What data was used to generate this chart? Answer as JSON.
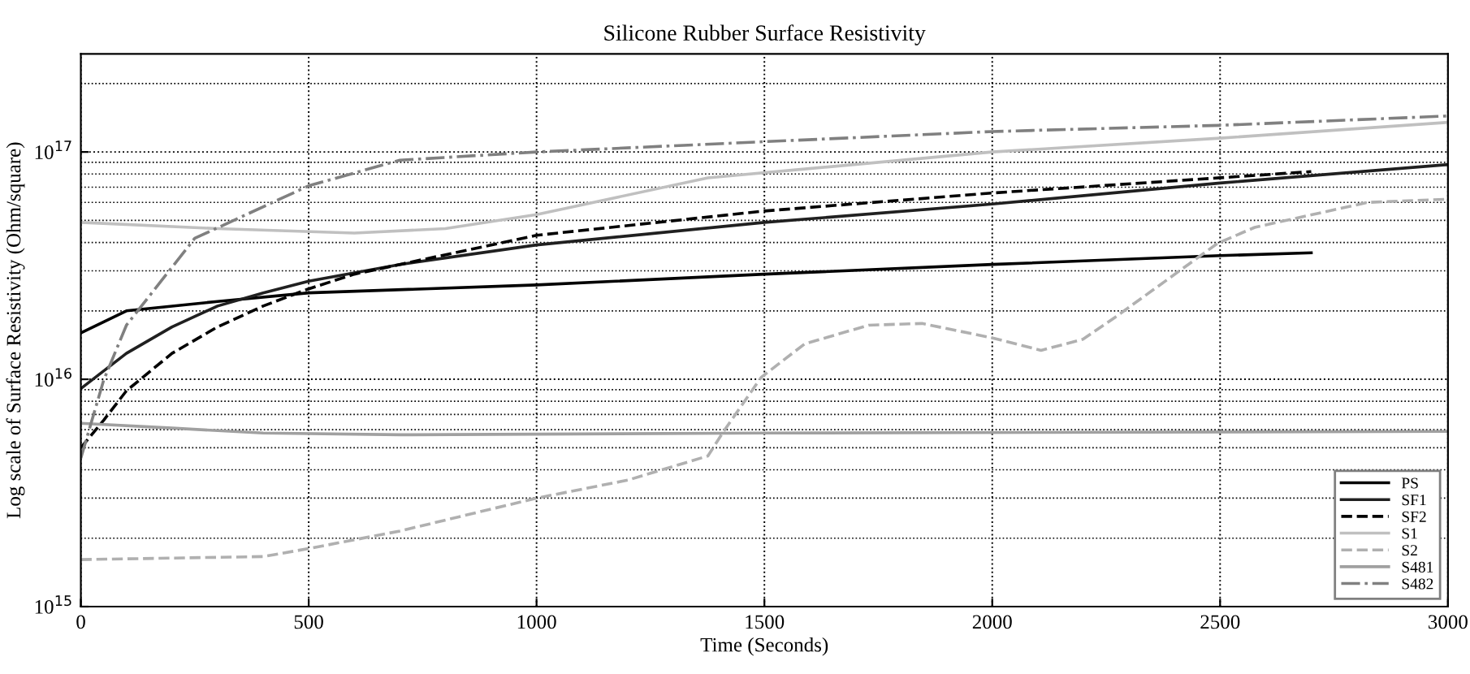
{
  "chart_data": {
    "type": "line",
    "title": "Silicone Rubber Surface Resistivity",
    "xlabel": "Time (Seconds)",
    "ylabel": "Log scale of Surface Resistivity (Ohm/square)",
    "log": "y",
    "grid": true,
    "legend": "lower right",
    "xlim": [
      0,
      3000
    ],
    "xticks": [
      0,
      500,
      1000,
      1500,
      2000,
      2500,
      3000
    ],
    "ylim": [
      1000000000000000.0,
      2.7e+17
    ],
    "yticks": [
      {
        "value": 1000000000000000.0,
        "label": "10$^{15}$"
      },
      {
        "value": 1e+16,
        "label": "10$^{16}$"
      },
      {
        "value": 1e+17,
        "label": "10$^{17}$"
      }
    ],
    "series": [
      {
        "name": "PS",
        "color": "#000000",
        "line_style": "solid",
        "x": [
          0,
          100,
          300,
          500,
          1000,
          1500,
          2000,
          2500,
          2700
        ],
        "values": [
          1.6e+16,
          2e+16,
          2.2e+16,
          2.4e+16,
          2.6e+16,
          2.9e+16,
          3.2e+16,
          3.5e+16,
          3.6e+16
        ]
      },
      {
        "name": "SF1",
        "color": "#202020",
        "line_style": "solid",
        "x": [
          0,
          100,
          200,
          300,
          400,
          500,
          700,
          1000,
          1500,
          2000,
          2500,
          3000
        ],
        "values": [
          9100000000000000.0,
          1.3e+16,
          1.7e+16,
          2.1e+16,
          2.4e+16,
          2.7e+16,
          3.2e+16,
          3.9e+16,
          4.9e+16,
          5.9e+16,
          7.3e+16,
          8.8e+16
        ]
      },
      {
        "name": "SF2",
        "color": "#000000",
        "line_style": "dashed",
        "x": [
          0,
          50,
          100,
          200,
          300,
          400,
          500,
          600,
          700,
          1000,
          1500,
          2000,
          2500,
          2700
        ],
        "values": [
          5000000000000000.0,
          6600000000000000.0,
          8900000000000000.0,
          1.3e+16,
          1.7e+16,
          2.1e+16,
          2.5e+16,
          2.9e+16,
          3.2e+16,
          4.3e+16,
          5.5e+16,
          6.6e+16,
          7.7e+16,
          8.2e+16
        ]
      },
      {
        "name": "S1",
        "color": "#c0c0c0",
        "line_style": "solid",
        "x": [
          0,
          300,
          600,
          800,
          1000,
          1376,
          2000,
          2500,
          3000
        ],
        "values": [
          4.9e+16,
          4.6e+16,
          4.4e+16,
          4.6e+16,
          5.3e+16,
          7.7e+16,
          1e+17,
          1.15e+17,
          1.35e+17
        ]
      },
      {
        "name": "S2",
        "color": "#b0b0b0",
        "line_style": "dashed",
        "x": [
          0,
          400,
          500,
          700,
          1000,
          1200,
          1376,
          1412,
          1493,
          1588,
          1729,
          1846,
          2001,
          2107,
          2199,
          2269,
          2495,
          2576,
          2824,
          3000
        ],
        "values": [
          1610000000000000.0,
          1660000000000000.0,
          1800000000000000.0,
          2150000000000000.0,
          3000000000000000.0,
          3600000000000000.0,
          4600000000000000.0,
          5960000000000000.0,
          1.02e+16,
          1.43e+16,
          1.73e+16,
          1.76e+16,
          1.52e+16,
          1.34e+16,
          1.5e+16,
          1.87e+16,
          3.97e+16,
          4.66e+16,
          6e+16,
          6.2e+16
        ]
      },
      {
        "name": "S481",
        "color": "#a0a0a0",
        "line_style": "solid",
        "x": [
          0,
          200,
          400,
          700,
          1500,
          3000
        ],
        "values": [
          6400000000000000.0,
          6100000000000000.0,
          5800000000000000.0,
          5700000000000000.0,
          5800000000000000.0,
          5900000000000000.0
        ]
      },
      {
        "name": "S482",
        "color": "#808080",
        "line_style": "dashdot",
        "x": [
          0,
          50,
          100,
          250,
          500,
          700,
          1000,
          1500,
          2000,
          2500,
          3000
        ],
        "values": [
          4500000000000000.0,
          9900000000000000.0,
          1.73e+16,
          4.17e+16,
          7.1e+16,
          9.2e+16,
          1e+17,
          1.11e+17,
          1.23e+17,
          1.31e+17,
          1.44e+17
        ]
      }
    ]
  }
}
